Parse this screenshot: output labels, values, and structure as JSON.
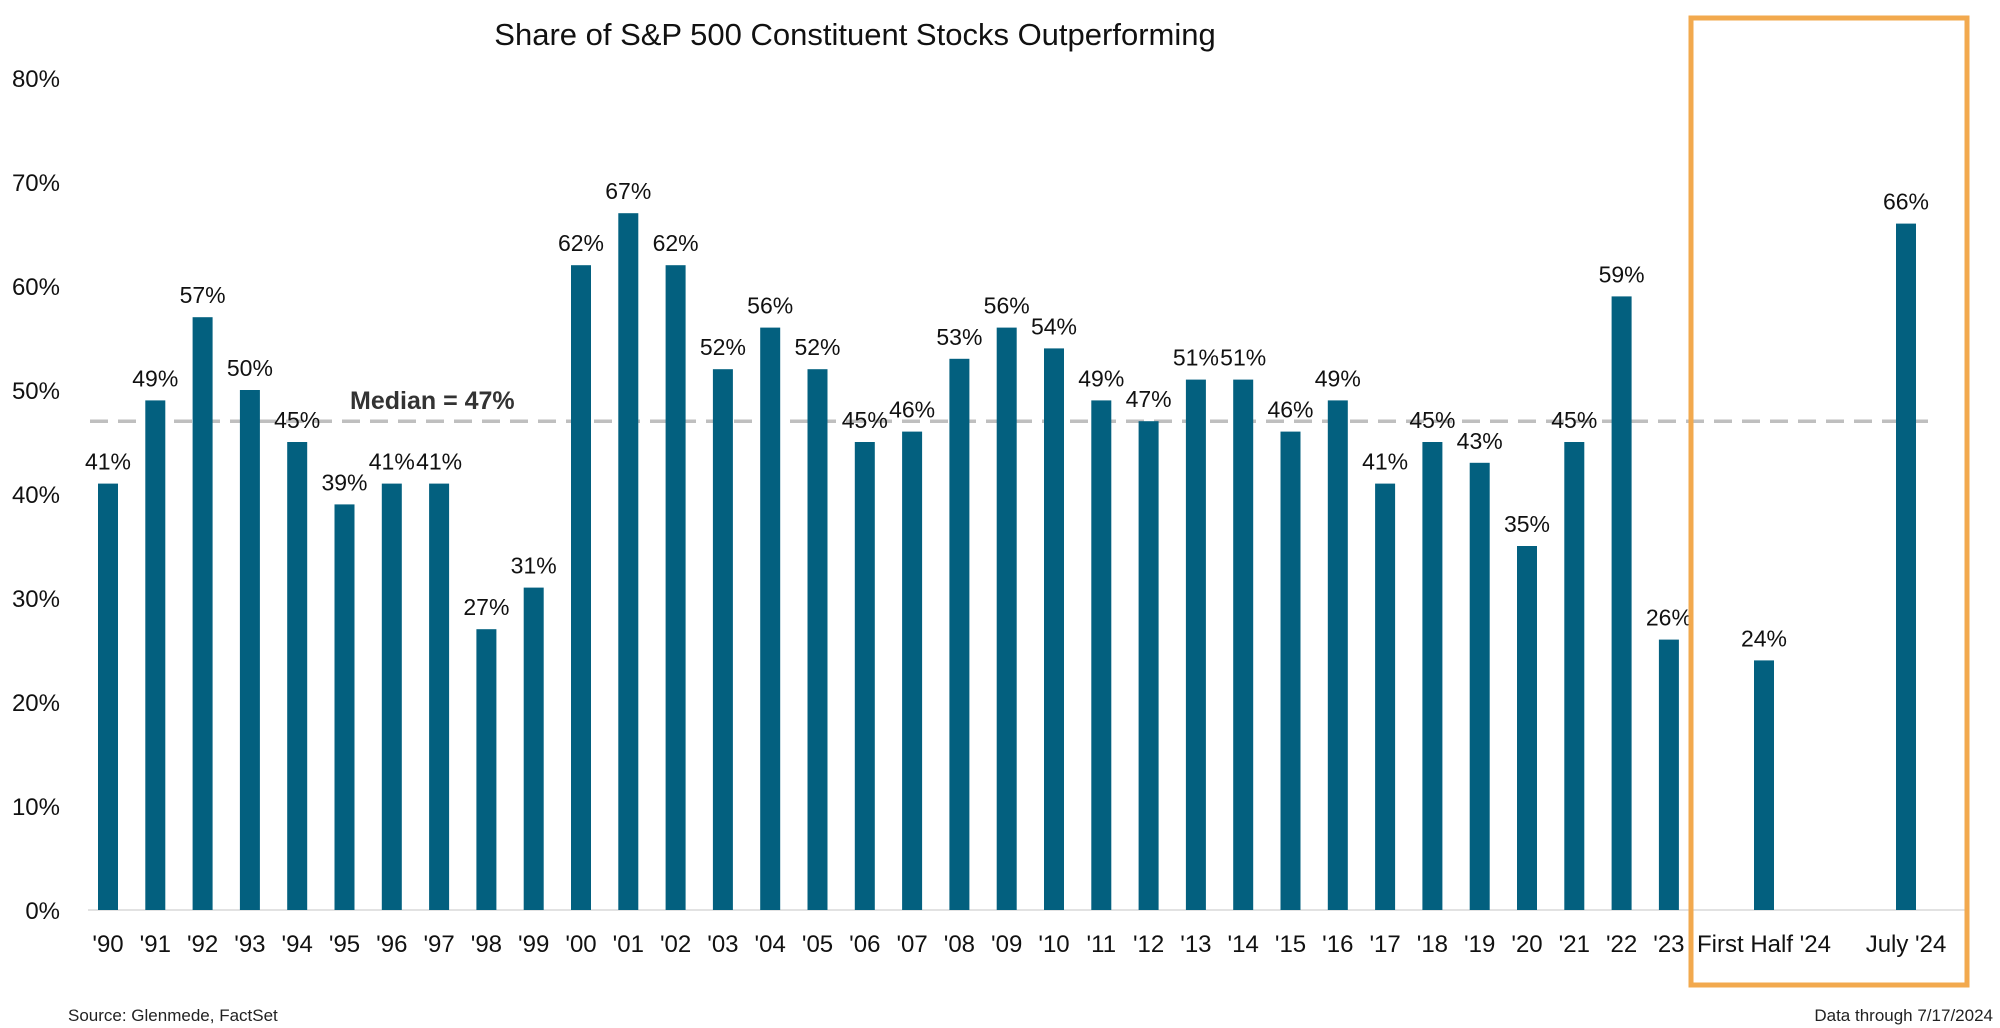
{
  "chart_data": {
    "type": "bar",
    "title": "Share of S&P 500 Constituent Stocks Outperforming",
    "categories": [
      "'90",
      "'91",
      "'92",
      "'93",
      "'94",
      "'95",
      "'96",
      "'97",
      "'98",
      "'99",
      "'00",
      "'01",
      "'02",
      "'03",
      "'04",
      "'05",
      "'06",
      "'07",
      "'08",
      "'09",
      "'10",
      "'11",
      "'12",
      "'13",
      "'14",
      "'15",
      "'16",
      "'17",
      "'18",
      "'19",
      "'20",
      "'21",
      "'22",
      "'23",
      "First Half '24",
      "July '24"
    ],
    "values": [
      41,
      49,
      57,
      50,
      45,
      39,
      41,
      41,
      27,
      31,
      62,
      67,
      62,
      52,
      56,
      52,
      45,
      46,
      53,
      56,
      54,
      49,
      47,
      51,
      51,
      46,
      49,
      41,
      45,
      43,
      35,
      45,
      59,
      26,
      24,
      66
    ],
    "data_labels": [
      "41%",
      "49%",
      "57%",
      "50%",
      "45%",
      "39%",
      "41%",
      "41%",
      "27%",
      "31%",
      "62%",
      "67%",
      "62%",
      "52%",
      "56%",
      "52%",
      "45%",
      "46%",
      "53%",
      "56%",
      "54%",
      "49%",
      "47%",
      "51%",
      "51%",
      "46%",
      "49%",
      "41%",
      "45%",
      "43%",
      "35%",
      "45%",
      "59%",
      "26%",
      "24%",
      "66%"
    ],
    "yticks": [
      "0%",
      "10%",
      "20%",
      "30%",
      "40%",
      "50%",
      "60%",
      "70%",
      "80%"
    ],
    "ylim": [
      0,
      80
    ],
    "xlabel": "",
    "ylabel": "",
    "grid": false,
    "median": {
      "value": 47,
      "label": "Median = 47%"
    },
    "highlight": {
      "categories": [
        "First Half '24",
        "July '24"
      ],
      "color": "#F2A94E"
    },
    "bar_color": "#03607F",
    "median_color": "#BFBFBF"
  },
  "footer": {
    "source": "Source: Glenmede, FactSet",
    "note": "Data through 7/17/2024"
  }
}
